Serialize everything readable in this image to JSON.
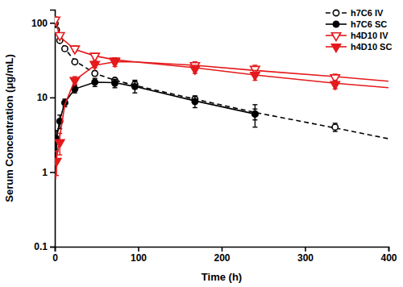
{
  "chart_data": {
    "type": "scatter",
    "x_label": "Time (h)",
    "y_label": "Serum Concentration (μg/mL)",
    "log": "y",
    "grid": false,
    "legend": "upper right",
    "xlim": [
      0,
      400
    ],
    "xticks": [
      0,
      100,
      200,
      300,
      400
    ],
    "ylim": [
      0.1,
      150
    ],
    "yticks": [
      0.1,
      1,
      10,
      100
    ],
    "series": [
      {
        "name": "h7C6 IV",
        "color": "#000000",
        "marker": "circle-open",
        "line_style": "dashed",
        "x": [
          0.5,
          2,
          6,
          12,
          24,
          48,
          72,
          96,
          168,
          240,
          336
        ],
        "values": [
          98,
          80,
          58,
          45,
          30,
          21,
          17,
          15,
          9.5,
          6,
          4
        ],
        "error": [
          3,
          3,
          3,
          2,
          2,
          1.5,
          1,
          2,
          1,
          1,
          0.5
        ],
        "fit_x": [
          0,
          2,
          6,
          12,
          24,
          48,
          72,
          96,
          168,
          240,
          336,
          400
        ],
        "fit_values": [
          100,
          82,
          60,
          45,
          31,
          21,
          17,
          14.5,
          9.5,
          6.3,
          3.9,
          2.8
        ]
      },
      {
        "name": "h7C6 SC",
        "color": "#000000",
        "marker": "circle",
        "line_style": "solid",
        "x": [
          2,
          6,
          12,
          24,
          48,
          72,
          96,
          168,
          240
        ],
        "values": [
          2.8,
          4.8,
          8.5,
          13,
          16,
          15.5,
          14,
          8.8,
          6
        ],
        "error": [
          0.8,
          1,
          1,
          1.5,
          2,
          2,
          2.5,
          1.5,
          2
        ],
        "fit_x": [
          1,
          2,
          6,
          12,
          24,
          48,
          72,
          96,
          168,
          240
        ],
        "fit_values": [
          1.5,
          2.8,
          5,
          8.5,
          13,
          16,
          15.8,
          14,
          9,
          6
        ]
      },
      {
        "name": "h4D10 IV",
        "color": "#e41a1c",
        "marker": "triangle-down-open",
        "line_style": "solid",
        "x": [
          0.5,
          6,
          24,
          48,
          72,
          168,
          240,
          336
        ],
        "values": [
          110,
          68,
          45,
          36,
          31,
          27,
          24,
          18.5
        ],
        "error": [
          10,
          5,
          4,
          3,
          3,
          3,
          3,
          2
        ],
        "fit_x": [
          0,
          6,
          24,
          48,
          72,
          96,
          168,
          240,
          336,
          400
        ],
        "fit_values": [
          115,
          65,
          44,
          36,
          32,
          30,
          27,
          23,
          19,
          16.5
        ]
      },
      {
        "name": "h4D10 SC",
        "color": "#e41a1c",
        "marker": "triangle-down",
        "line_style": "solid",
        "x": [
          2,
          6,
          24,
          48,
          72,
          168,
          240,
          336
        ],
        "values": [
          1.4,
          2.5,
          17,
          28,
          30,
          24,
          20,
          15
        ],
        "error": [
          0.5,
          0.8,
          2,
          3,
          4,
          3,
          3,
          2
        ],
        "fit_x": [
          1,
          2,
          6,
          12,
          24,
          48,
          72,
          96,
          168,
          240,
          336,
          400
        ],
        "fit_values": [
          0.8,
          1.5,
          3,
          8,
          17,
          27,
          30,
          30,
          25,
          20,
          15.5,
          13.5
        ]
      }
    ]
  }
}
